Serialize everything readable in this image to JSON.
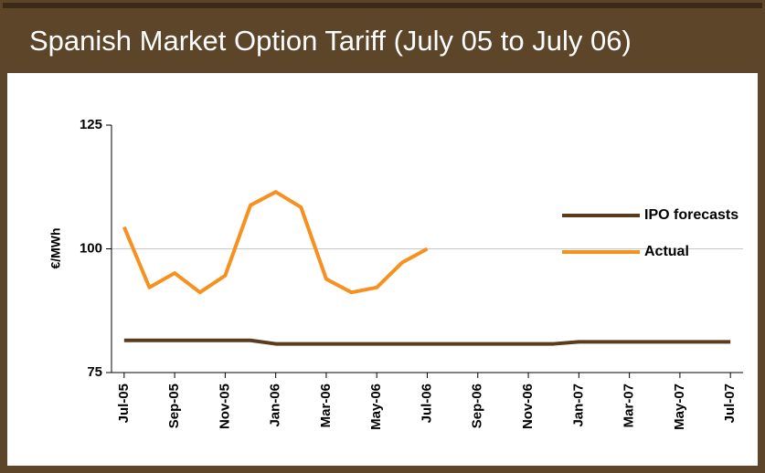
{
  "chart_data": {
    "type": "line",
    "title": "Spanish Market Option Tariff (July 05 to July 06)",
    "y_label": "€/MWh",
    "categories": [
      "Jul-05",
      null,
      "Sep-05",
      null,
      "Nov-05",
      null,
      "Jan-06",
      null,
      "Mar-06",
      null,
      "May-06",
      null,
      "Jul-06",
      null,
      "Sep-06",
      null,
      "Nov-06",
      null,
      "Jan-07",
      null,
      "Mar-07",
      null,
      "May-07",
      null,
      "Jul-07"
    ],
    "series": [
      {
        "name": "IPO forecasts",
        "color": "#5a3c1c",
        "values": [
          81.5,
          81.5,
          81.5,
          81.5,
          81.5,
          81.5,
          80.8,
          80.8,
          80.8,
          80.8,
          80.8,
          80.8,
          80.8,
          80.8,
          80.8,
          80.8,
          80.8,
          80.8,
          81.2,
          81.2,
          81.2,
          81.2,
          81.2,
          81.2,
          81.2
        ]
      },
      {
        "name": "Actual",
        "color": "#f7901e",
        "values": [
          104.4,
          92.2,
          95.1,
          91.2,
          94.6,
          108.8,
          111.5,
          108.4,
          93.9,
          91.2,
          92.2,
          97.2,
          100,
          null,
          null,
          null,
          null,
          null,
          null,
          null,
          null,
          null,
          null,
          null,
          null
        ]
      }
    ],
    "ylim": [
      75,
      125
    ],
    "yticks": [
      75,
      100,
      125
    ],
    "grid": true,
    "legend": "right"
  }
}
